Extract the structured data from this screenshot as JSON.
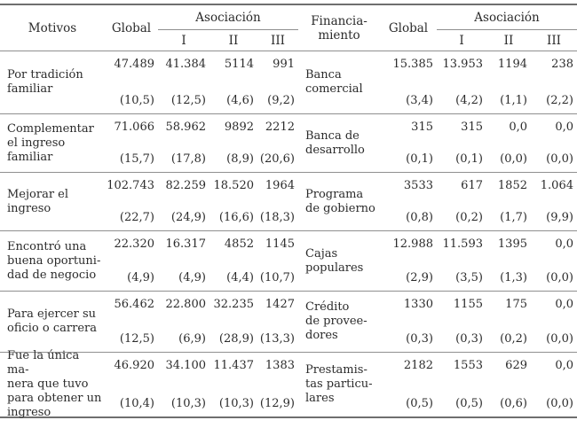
{
  "header": {
    "motivos": "Motivos",
    "global": "Global",
    "asociacion": "Asociación",
    "financiamiento": "Financia-\nmiento",
    "sub": [
      "I",
      "II",
      "III"
    ]
  },
  "table": {
    "rows": [
      {
        "left": {
          "label": "Por tradición\nfamiliar",
          "cells": [
            {
              "v": "47.489",
              "p": "(10,5)"
            },
            {
              "v": "41.384",
              "p": "(12,5)"
            },
            {
              "v": "5114",
              "p": "(4,6)"
            },
            {
              "v": "991",
              "p": "(9,2)"
            }
          ]
        },
        "right": {
          "label": "Banca\ncomercial",
          "cells": [
            {
              "v": "15.385",
              "p": "(3,4)"
            },
            {
              "v": "13.953",
              "p": "(4,2)"
            },
            {
              "v": "1194",
              "p": "(1,1)"
            },
            {
              "v": "238",
              "p": "(2,2)"
            }
          ]
        }
      },
      {
        "left": {
          "label": "Complementar\nel ingreso\nfamiliar",
          "cells": [
            {
              "v": "71.066",
              "p": "(15,7)"
            },
            {
              "v": "58.962",
              "p": "(17,8)"
            },
            {
              "v": "9892",
              "p": "(8,9)"
            },
            {
              "v": "2212",
              "p": "(20,6)"
            }
          ]
        },
        "right": {
          "label": "Banca de\ndesarrollo",
          "cells": [
            {
              "v": "315",
              "p": "(0,1)"
            },
            {
              "v": "315",
              "p": "(0,1)"
            },
            {
              "v": "0,0",
              "p": "(0,0)"
            },
            {
              "v": "0,0",
              "p": "(0,0)"
            }
          ]
        }
      },
      {
        "left": {
          "label": "Mejorar el\ningreso",
          "cells": [
            {
              "v": "102.743",
              "p": "(22,7)"
            },
            {
              "v": "82.259",
              "p": "(24,9)"
            },
            {
              "v": "18.520",
              "p": "(16,6)"
            },
            {
              "v": "1964",
              "p": "(18,3)"
            }
          ]
        },
        "right": {
          "label": "Programa\nde gobierno",
          "cells": [
            {
              "v": "3533",
              "p": "(0,8)"
            },
            {
              "v": "617",
              "p": "(0,2)"
            },
            {
              "v": "1852",
              "p": "(1,7)"
            },
            {
              "v": "1.064",
              "p": "(9,9)"
            }
          ]
        }
      },
      {
        "left": {
          "label": "Encontró una\nbuena oportuni-\ndad de negocio",
          "cells": [
            {
              "v": "22.320",
              "p": "(4,9)"
            },
            {
              "v": "16.317",
              "p": "(4,9)"
            },
            {
              "v": "4852",
              "p": "(4,4)"
            },
            {
              "v": "1145",
              "p": "(10,7)"
            }
          ]
        },
        "right": {
          "label": "Cajas\npopulares",
          "cells": [
            {
              "v": "12.988",
              "p": "(2,9)"
            },
            {
              "v": "11.593",
              "p": "(3,5)"
            },
            {
              "v": "1395",
              "p": "(1,3)"
            },
            {
              "v": "0,0",
              "p": "(0,0)"
            }
          ]
        }
      },
      {
        "left": {
          "label": "Para ejercer su\noficio o carrera",
          "cells": [
            {
              "v": "56.462",
              "p": "(12,5)"
            },
            {
              "v": "22.800",
              "p": "(6,9)"
            },
            {
              "v": "32.235",
              "p": "(28,9)"
            },
            {
              "v": "1427",
              "p": "(13,3)"
            }
          ]
        },
        "right": {
          "label": "Crédito\nde provee-\ndores",
          "cells": [
            {
              "v": "1330",
              "p": "(0,3)"
            },
            {
              "v": "1155",
              "p": "(0,3)"
            },
            {
              "v": "175",
              "p": "(0,2)"
            },
            {
              "v": "0,0",
              "p": "(0,0)"
            }
          ]
        }
      },
      {
        "left": {
          "label": "Fue la única ma-\nnera que tuvo\npara obtener un\ningreso",
          "cells": [
            {
              "v": "46.920",
              "p": "(10,4)"
            },
            {
              "v": "34.100",
              "p": "(10,3)"
            },
            {
              "v": "11.437",
              "p": "(10,3)"
            },
            {
              "v": "1383",
              "p": "(12,9)"
            }
          ]
        },
        "right": {
          "label": "Prestamis-\ntas particu-\nlares",
          "cells": [
            {
              "v": "2182",
              "p": "(0,5)"
            },
            {
              "v": "1553",
              "p": "(0,5)"
            },
            {
              "v": "629",
              "p": "(0,6)"
            },
            {
              "v": "0,0",
              "p": "(0,0)"
            }
          ]
        }
      }
    ]
  }
}
